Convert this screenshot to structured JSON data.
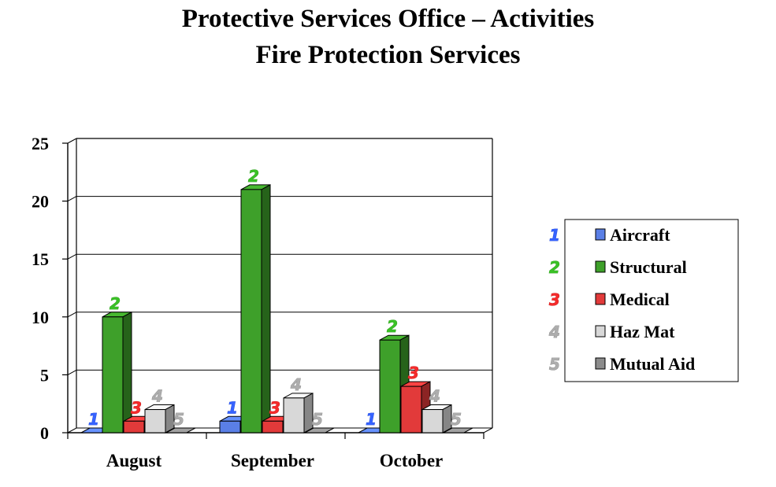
{
  "chart_data": {
    "type": "bar",
    "title": "Protective Services Office – Activities",
    "subtitle": "Fire Protection Services",
    "categories": [
      "August",
      "September",
      "October"
    ],
    "series": [
      {
        "name": "Aircraft",
        "label": "1",
        "color": "#5a7fe6",
        "values": [
          0,
          1,
          0
        ]
      },
      {
        "name": "Structural",
        "label": "2",
        "color": "#3ea02a",
        "values": [
          10,
          21,
          8
        ]
      },
      {
        "name": "Medical",
        "label": "3",
        "color": "#e23a3a",
        "values": [
          1,
          1,
          4
        ]
      },
      {
        "name": "Haz Mat",
        "label": "4",
        "color": "#d8d8d8",
        "values": [
          2,
          3,
          2
        ]
      },
      {
        "name": "Mutual Aid",
        "label": "5",
        "color": "#8c8c8c",
        "values": [
          0,
          0,
          0
        ]
      }
    ],
    "y_ticks": [
      "0",
      "5",
      "10",
      "15",
      "20",
      "25"
    ],
    "ylim": [
      0,
      25
    ],
    "grid": true,
    "legend_position": "right",
    "label_colors": [
      "#2b4fd6",
      "#2e9a1e",
      "#c42222",
      "#8a8a8a",
      "#8a8a8a"
    ]
  }
}
